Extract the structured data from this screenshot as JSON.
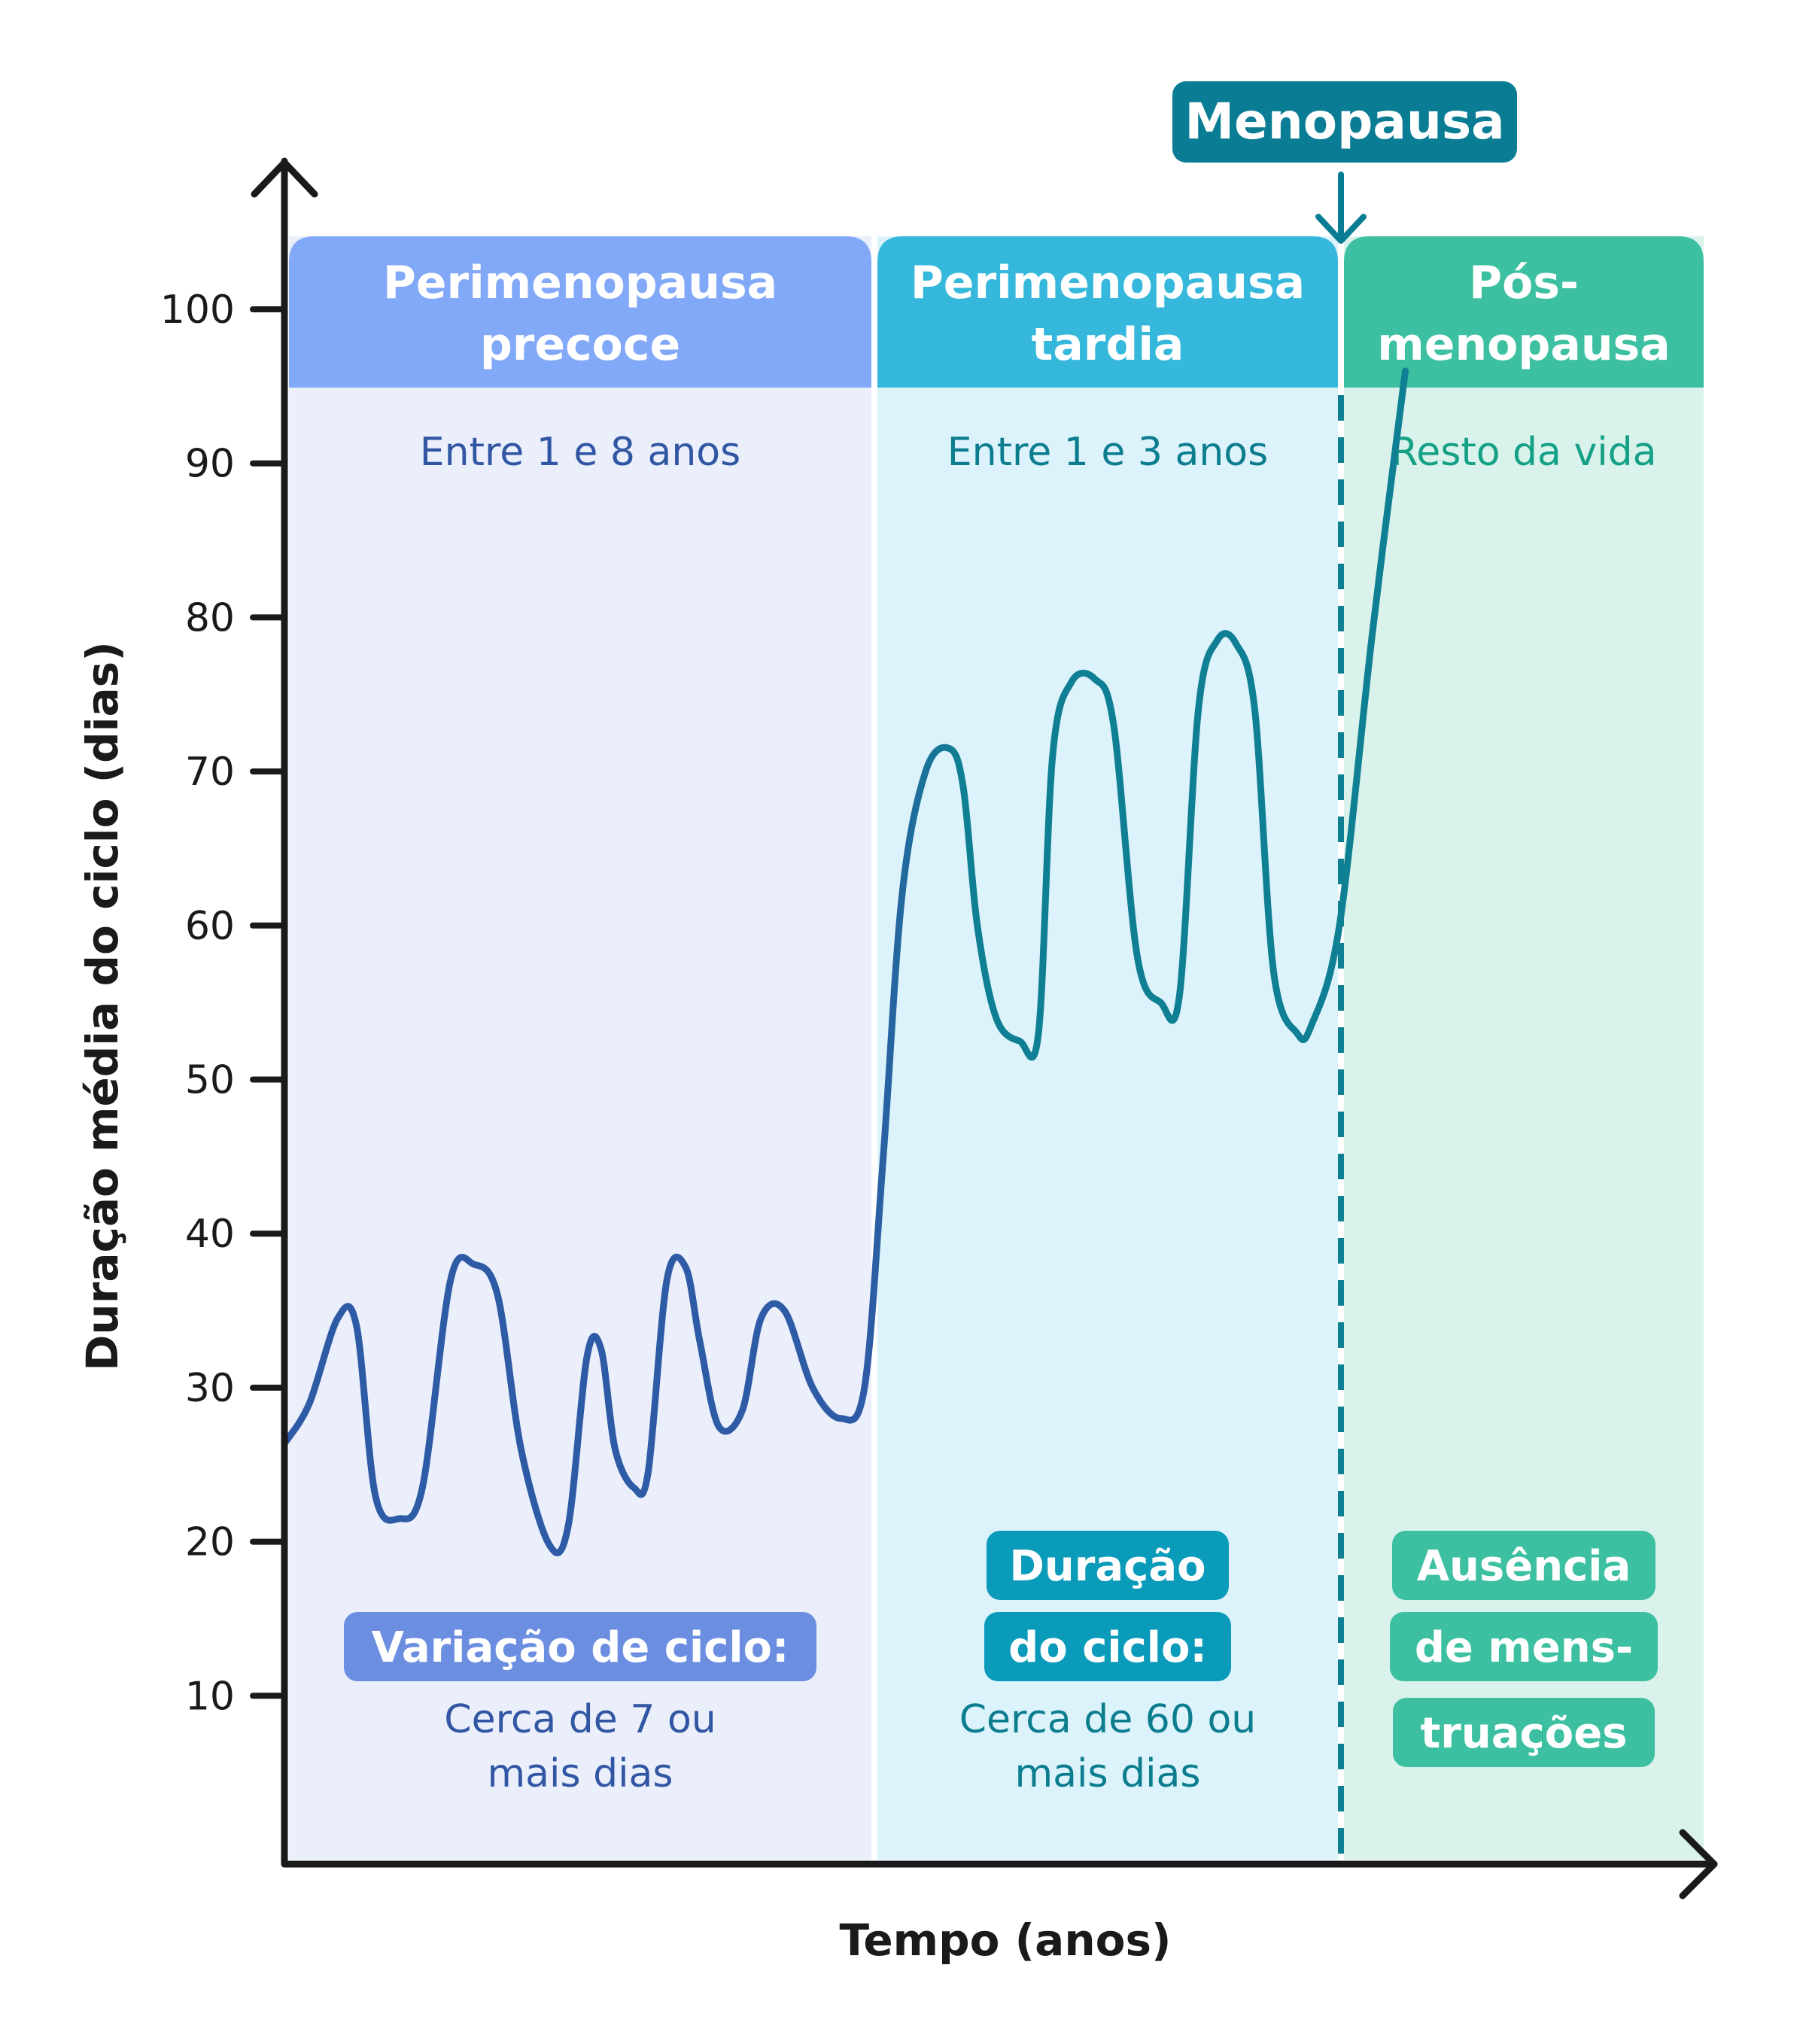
{
  "chart_data": {
    "type": "line",
    "ylabel": "Duração média do ciclo (dias)",
    "xlabel": "Tempo (anos)",
    "yticks": [
      10,
      20,
      30,
      40,
      50,
      60,
      70,
      80,
      90,
      100
    ],
    "ylim": [
      0,
      110
    ],
    "grid": false,
    "marker_label": "Menopausa",
    "phases": [
      {
        "title_lines": [
          "Perimenopausa",
          "precoce"
        ],
        "duration": "Entre 1 e 8 anos",
        "badge_lines": [
          "Variação de ciclo:"
        ],
        "note_lines": [
          "Cerca de 7 ou",
          "mais dias"
        ],
        "color_header": "#82a8f8",
        "color_bg": "#ebeffb",
        "color_text": "#3156a3",
        "color_badge": "#6b8ee0"
      },
      {
        "title_lines": [
          "Perimenopausa",
          "tardia"
        ],
        "duration": "Entre 1 e 3 anos",
        "badge_lines": [
          "Duração",
          "do ciclo:"
        ],
        "note_lines": [
          "Cerca de 60 ou",
          "mais dias"
        ],
        "color_header": "#35b8dc",
        "color_bg": "#ddf3fb",
        "color_text": "#0b7d8e",
        "color_badge": "#0b9bba"
      },
      {
        "title_lines": [
          "Pós-",
          "menopausa"
        ],
        "duration": "Resto da vida",
        "badge_lines": [
          "Ausência",
          "de mens-",
          "truações"
        ],
        "note_lines": [],
        "color_header": "#3cc0a1",
        "color_bg": "#d9f2ec",
        "color_text": "#13a085",
        "color_badge": "#3cc0a1"
      }
    ],
    "series": [
      {
        "color": "#2e5ba5",
        "points": [
          [
            0,
            26.5
          ],
          [
            0.25,
            29
          ],
          [
            0.55,
            34.5
          ],
          [
            0.75,
            34
          ],
          [
            0.95,
            23
          ],
          [
            1.2,
            21.5
          ],
          [
            1.45,
            23.5
          ],
          [
            1.75,
            37
          ],
          [
            2.0,
            38
          ],
          [
            2.25,
            36
          ],
          [
            2.5,
            26
          ],
          [
            2.8,
            19.8
          ],
          [
            3.0,
            21
          ],
          [
            3.2,
            32
          ],
          [
            3.35,
            32.5
          ],
          [
            3.5,
            26
          ],
          [
            3.7,
            23.5
          ],
          [
            3.85,
            24.5
          ],
          [
            4.05,
            37
          ],
          [
            4.25,
            37.8
          ],
          [
            4.4,
            33
          ],
          [
            4.6,
            27.5
          ],
          [
            4.85,
            28.5
          ],
          [
            5.05,
            34.5
          ],
          [
            5.3,
            35
          ],
          [
            5.6,
            30
          ],
          [
            5.9,
            28
          ],
          [
            6.15,
            30
          ],
          [
            6.35,
            45
          ],
          [
            6.55,
            62
          ],
          [
            6.8,
            70
          ],
          [
            7.05,
            71.5
          ],
          [
            7.2,
            69
          ],
          [
            7.35,
            60
          ],
          [
            7.55,
            54
          ],
          [
            7.8,
            52.5
          ],
          [
            8.0,
            53
          ],
          [
            8.15,
            71
          ],
          [
            8.35,
            75.8
          ],
          [
            8.6,
            76
          ],
          [
            8.8,
            73
          ],
          [
            9.05,
            58
          ],
          [
            9.3,
            55
          ],
          [
            9.5,
            55.5
          ],
          [
            9.7,
            74
          ],
          [
            9.9,
            78.5
          ],
          [
            10.1,
            78.3
          ],
          [
            10.3,
            74
          ],
          [
            10.5,
            57
          ],
          [
            10.75,
            53
          ],
          [
            10.9,
            53.5
          ],
          [
            11.2,
            60
          ],
          [
            11.55,
            79
          ],
          [
            11.9,
            96
          ]
        ]
      }
    ]
  }
}
